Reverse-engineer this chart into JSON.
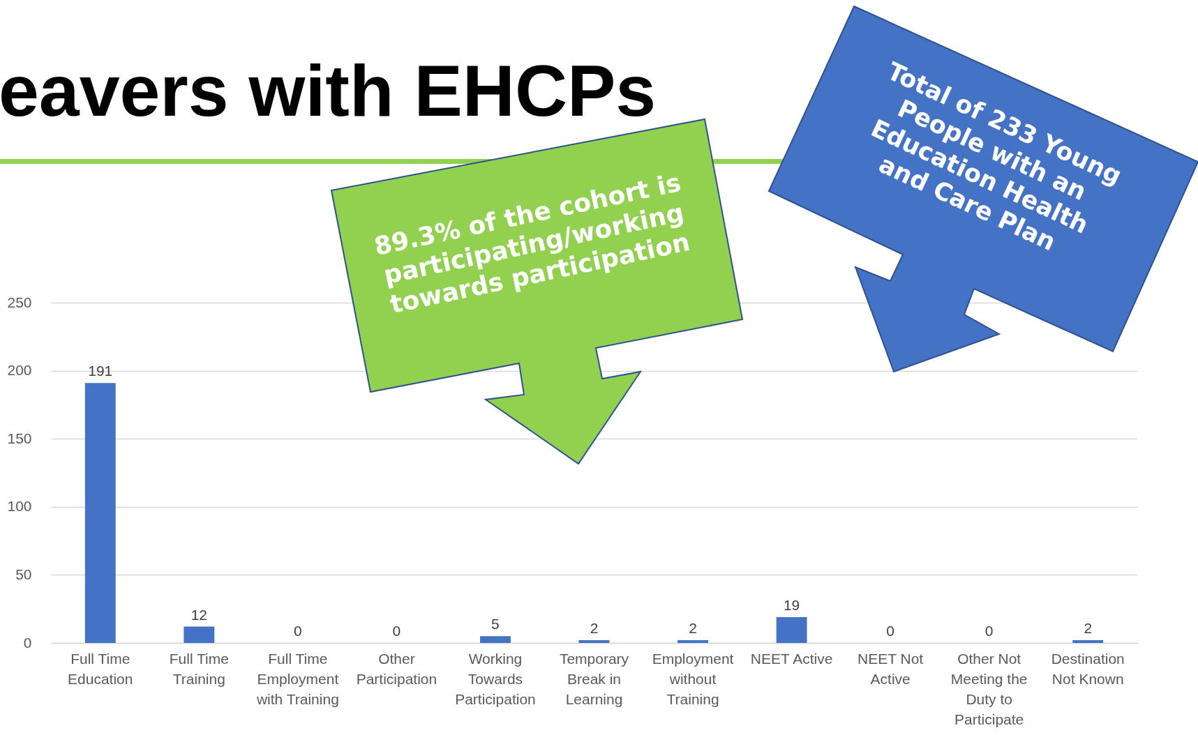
{
  "chart_data": {
    "type": "bar",
    "title": "eavers with EHCPs",
    "categories": [
      "Full Time Education",
      "Full Time Training",
      "Full Time Employment with Training",
      "Other Participation",
      "Working Towards Participation",
      "Temporary Break in Learning",
      "Employment without Training",
      "NEET Active",
      "NEET Not Active",
      "Other Not Meeting the Duty to Participate",
      "Destination Not Known"
    ],
    "values": [
      191,
      12,
      0,
      0,
      5,
      2,
      2,
      19,
      0,
      0,
      2
    ],
    "color": "#4472c4",
    "ylim": [
      0,
      250
    ],
    "yticks": [
      0,
      50,
      100,
      150,
      200,
      250
    ],
    "grid": "y",
    "data_labels": true,
    "annotations": [
      "89.3% of the cohort is participating/working towards participation",
      "Total of 233 Young People with an Education Health and Care Plan"
    ]
  }
}
